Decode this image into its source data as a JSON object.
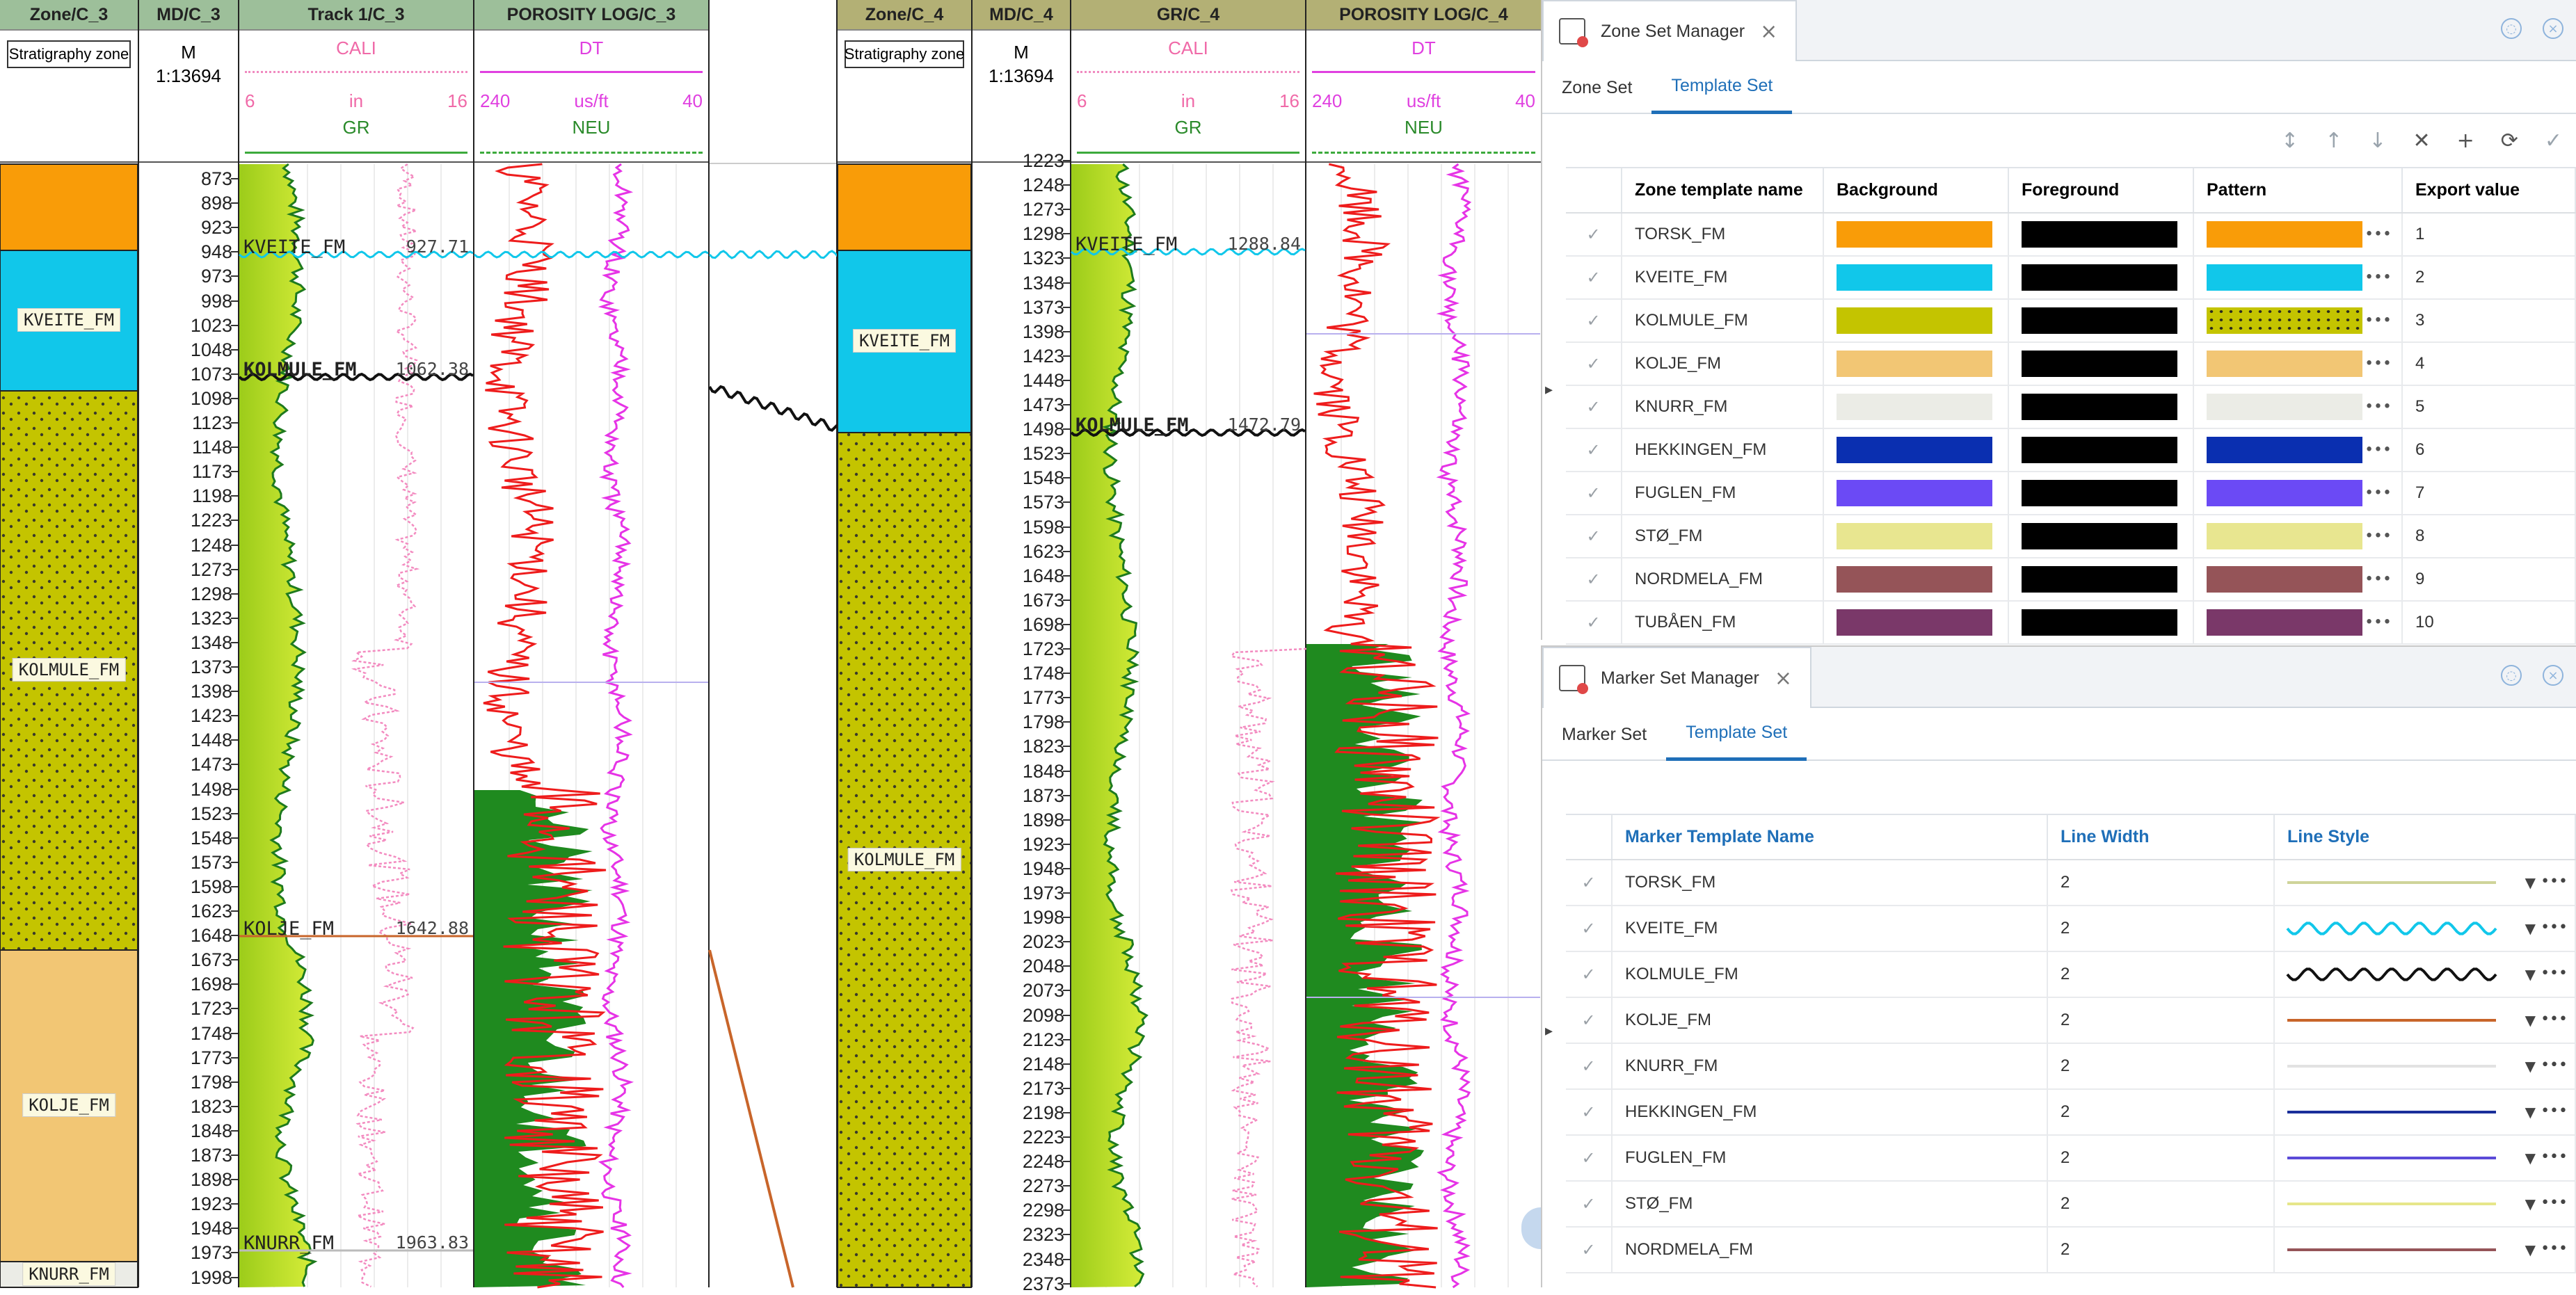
{
  "well_c3": {
    "zone_track": {
      "title_prefix": "Zone/",
      "title_well": "C_3",
      "header_box": "Stratigraphy zone"
    },
    "md_track": {
      "title_prefix": "MD/",
      "title_well": "C_3",
      "unit": "M",
      "scale": "1:13694",
      "depths": [
        "873",
        "898",
        "923",
        "948",
        "973",
        "998",
        "1023",
        "1048",
        "1073",
        "1098",
        "1123",
        "1148",
        "1173",
        "1198",
        "1223",
        "1248",
        "1273",
        "1298",
        "1323",
        "1348",
        "1373",
        "1398",
        "1423",
        "1448",
        "1473",
        "1498",
        "1523",
        "1548",
        "1573",
        "1598",
        "1623",
        "1648",
        "1673",
        "1698",
        "1723",
        "1748",
        "1773",
        "1798",
        "1823",
        "1848",
        "1873",
        "1898",
        "1923",
        "1948",
        "1973",
        "1998"
      ]
    },
    "track1": {
      "title_prefix": "Track 1/",
      "title_well": "C_3",
      "cali": "CALI",
      "cali_min": "6",
      "cali_unit": "in",
      "cali_max": "16",
      "gr": "GR"
    },
    "porosity": {
      "title_prefix": "POROSITY LOG/",
      "title_well": "C_3",
      "dt": "DT",
      "dt_min": "240",
      "dt_unit": "us/ft",
      "dt_max": "40",
      "neu": "NEU"
    },
    "zones": [
      {
        "name": "",
        "color": "#f99c08"
      },
      {
        "name": "KVEITE_FM",
        "color": "#11c7ea"
      },
      {
        "name": "KOLMULE_FM",
        "color": "#c4c400"
      },
      {
        "name": "KOLJE_FM",
        "color": "#f2c674"
      },
      {
        "name": "KNURR_FM",
        "color": "#ebece6"
      }
    ],
    "markers": [
      {
        "name": "KVEITE_FM",
        "value": "927.71"
      },
      {
        "name": "KOLMULE_FM",
        "value": "1062.38"
      },
      {
        "name": "KOLJE_FM",
        "value": "1642.88"
      },
      {
        "name": "KNURR_FM",
        "value": "1963.83"
      }
    ]
  },
  "well_c4": {
    "zone_track": {
      "title_prefix": "Zone/",
      "title_well": "C_4",
      "header_box": "Stratigraphy zone"
    },
    "md_track": {
      "title_prefix": "MD/",
      "title_well": "C_4",
      "unit": "M",
      "scale": "1:13694",
      "depths": [
        "1223",
        "1248",
        "1273",
        "1298",
        "1323",
        "1348",
        "1373",
        "1398",
        "1423",
        "1448",
        "1473",
        "1498",
        "1523",
        "1548",
        "1573",
        "1598",
        "1623",
        "1648",
        "1673",
        "1698",
        "1723",
        "1748",
        "1773",
        "1798",
        "1823",
        "1848",
        "1873",
        "1898",
        "1923",
        "1948",
        "1973",
        "1998",
        "2023",
        "2048",
        "2073",
        "2098",
        "2123",
        "2148",
        "2173",
        "2198",
        "2223",
        "2248",
        "2273",
        "2298",
        "2323",
        "2348",
        "2373"
      ]
    },
    "gr_track": {
      "title_prefix": "GR/",
      "title_well": "C_4",
      "cali": "CALI",
      "cali_min": "6",
      "cali_unit": "in",
      "cali_max": "16",
      "gr": "GR"
    },
    "porosity": {
      "title_prefix": "POROSITY LOG/",
      "title_well": "C_4",
      "dt": "DT",
      "dt_min": "240",
      "dt_unit": "us/ft",
      "dt_max": "40",
      "neu": "NEU"
    },
    "zones": [
      {
        "name": "",
        "color": "#f99c08"
      },
      {
        "name": "KVEITE_FM",
        "color": "#11c7ea"
      },
      {
        "name": "KOLMULE_FM",
        "color": "#c4c400"
      }
    ],
    "markers": [
      {
        "name": "KVEITE_FM",
        "value": "1288.84"
      },
      {
        "name": "KOLMULE_FM",
        "value": "1472.79"
      }
    ]
  },
  "zone_set_manager": {
    "title": "Zone Set Manager",
    "tabs": [
      "Zone Set",
      "Template Set"
    ],
    "active_tab": "Template Set",
    "columns": [
      "Zone template name",
      "Background",
      "Foreground",
      "Pattern",
      "Export value"
    ],
    "rows": [
      {
        "name": "TORSK_FM",
        "bg": "#f99c08",
        "fg": "#000000",
        "pattern": "#f99c08",
        "export": "1",
        "dotted": false
      },
      {
        "name": "KVEITE_FM",
        "bg": "#11c7ea",
        "fg": "#000000",
        "pattern": "#11c7ea",
        "export": "2",
        "dotted": false
      },
      {
        "name": "KOLMULE_FM",
        "bg": "#c4c400",
        "fg": "#000000",
        "pattern": "#c4c400",
        "export": "3",
        "dotted": true
      },
      {
        "name": "KOLJE_FM",
        "bg": "#f2c674",
        "fg": "#000000",
        "pattern": "#f2c674",
        "export": "4",
        "dotted": false
      },
      {
        "name": "KNURR_FM",
        "bg": "#ebece6",
        "fg": "#000000",
        "pattern": "#ebece6",
        "export": "5",
        "dotted": false
      },
      {
        "name": "HEKKINGEN_FM",
        "bg": "#0a2fb0",
        "fg": "#000000",
        "pattern": "#0a2fb0",
        "export": "6",
        "dotted": false
      },
      {
        "name": "FUGLEN_FM",
        "bg": "#6b4af5",
        "fg": "#000000",
        "pattern": "#6b4af5",
        "export": "7",
        "dotted": false
      },
      {
        "name": "STØ_FM",
        "bg": "#e8e690",
        "fg": "#000000",
        "pattern": "#e8e690",
        "export": "8",
        "dotted": false
      },
      {
        "name": "NORDMELA_FM",
        "bg": "#955458",
        "fg": "#000000",
        "pattern": "#955458",
        "export": "9",
        "dotted": false
      },
      {
        "name": "TUBÅEN_FM",
        "bg": "#7a3869",
        "fg": "#000000",
        "pattern": "#7a3869",
        "export": "10",
        "dotted": false
      }
    ]
  },
  "marker_set_manager": {
    "title": "Marker Set Manager",
    "tabs": [
      "Marker Set",
      "Template Set"
    ],
    "active_tab": "Template Set",
    "columns": [
      "Marker Template Name",
      "Line Width",
      "Line Style"
    ],
    "rows": [
      {
        "name": "TORSK_FM",
        "width": "2",
        "color": "#cfd49a",
        "style": "line"
      },
      {
        "name": "KVEITE_FM",
        "width": "2",
        "color": "#11c7ea",
        "style": "wave"
      },
      {
        "name": "KOLMULE_FM",
        "width": "2",
        "color": "#111111",
        "style": "wave"
      },
      {
        "name": "KOLJE_FM",
        "width": "2",
        "color": "#c8652a",
        "style": "line"
      },
      {
        "name": "KNURR_FM",
        "width": "2",
        "color": "#e2e2e2",
        "style": "line"
      },
      {
        "name": "HEKKINGEN_FM",
        "width": "2",
        "color": "#1a2f9a",
        "style": "line"
      },
      {
        "name": "FUGLEN_FM",
        "width": "2",
        "color": "#5b4ad8",
        "style": "line"
      },
      {
        "name": "STØ_FM",
        "width": "2",
        "color": "#e6e68a",
        "style": "line"
      },
      {
        "name": "NORDMELA_FM",
        "width": "2",
        "color": "#955458",
        "style": "line"
      }
    ]
  }
}
